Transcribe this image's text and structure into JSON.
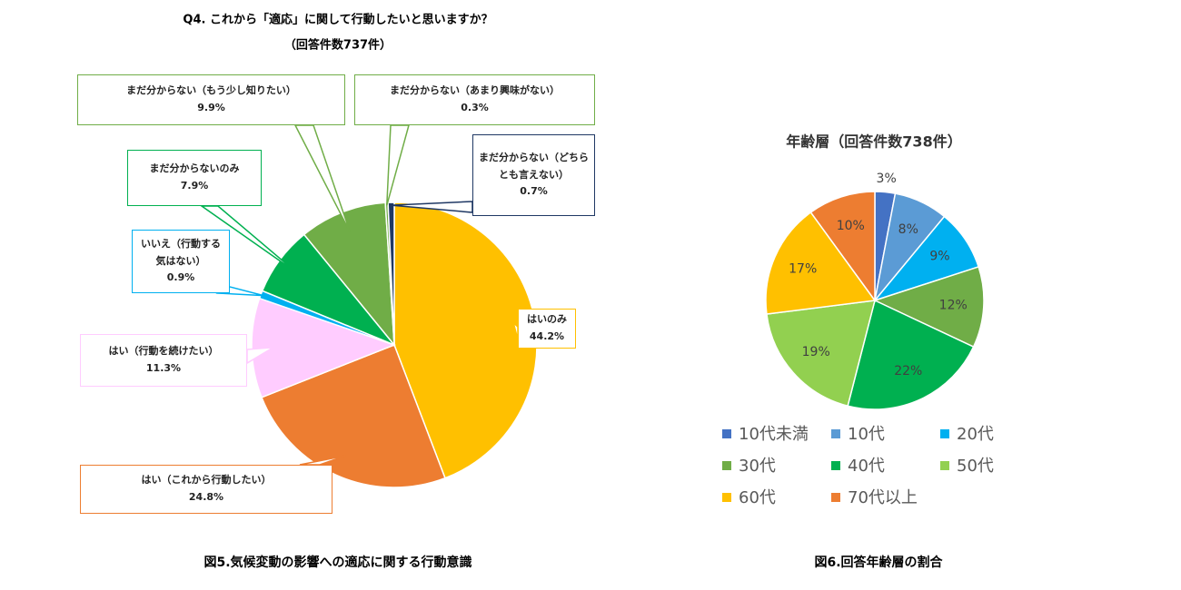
{
  "chart_data": [
    {
      "type": "pie",
      "title": "Q4. これから「適応」に関して行動したいと思いますか？",
      "subtitle": "（回答件数737件）",
      "caption": "図5.気候変動の影響への適応に関する行動意識",
      "categories": [
        "はいのみ",
        "はい（これから行動したい）",
        "はい（行動を続けたい）",
        "いいえ（行動する気はない）",
        "まだ分からないのみ",
        "まだ分からない（もう少し知りたい）",
        "まだ分からない（あまり興味がない）",
        "まだ分からない（どちらとも言えない）"
      ],
      "values": [
        44.2,
        24.8,
        11.3,
        0.9,
        7.9,
        9.9,
        0.3,
        0.7
      ],
      "value_labels": [
        "44.2%",
        "24.8%",
        "11.3%",
        "0.9%",
        "7.9%",
        "9.9%",
        "0.3%",
        "0.7%"
      ],
      "colors": [
        "#ffc000",
        "#ed7d31",
        "#ffccff",
        "#00b0f0",
        "#00b050",
        "#70ad47",
        "#70ad47",
        "#1f3864"
      ]
    },
    {
      "type": "pie",
      "title": "年齢層（回答件数738件）",
      "caption": "図6.回答年齢層の割合",
      "categories": [
        "10代未満",
        "10代",
        "20代",
        "30代",
        "40代",
        "50代",
        "60代",
        "70代以上"
      ],
      "values": [
        3,
        8,
        9,
        12,
        22,
        19,
        17,
        10
      ],
      "value_labels": [
        "3%",
        "8%",
        "9%",
        "12%",
        "22%",
        "19%",
        "17%",
        "10%"
      ],
      "colors": [
        "#4472c4",
        "#5b9bd5",
        "#00b0f0",
        "#70ad47",
        "#00b050",
        "#92d050",
        "#ffc000",
        "#ed7d31"
      ],
      "legend": "bottom"
    }
  ]
}
